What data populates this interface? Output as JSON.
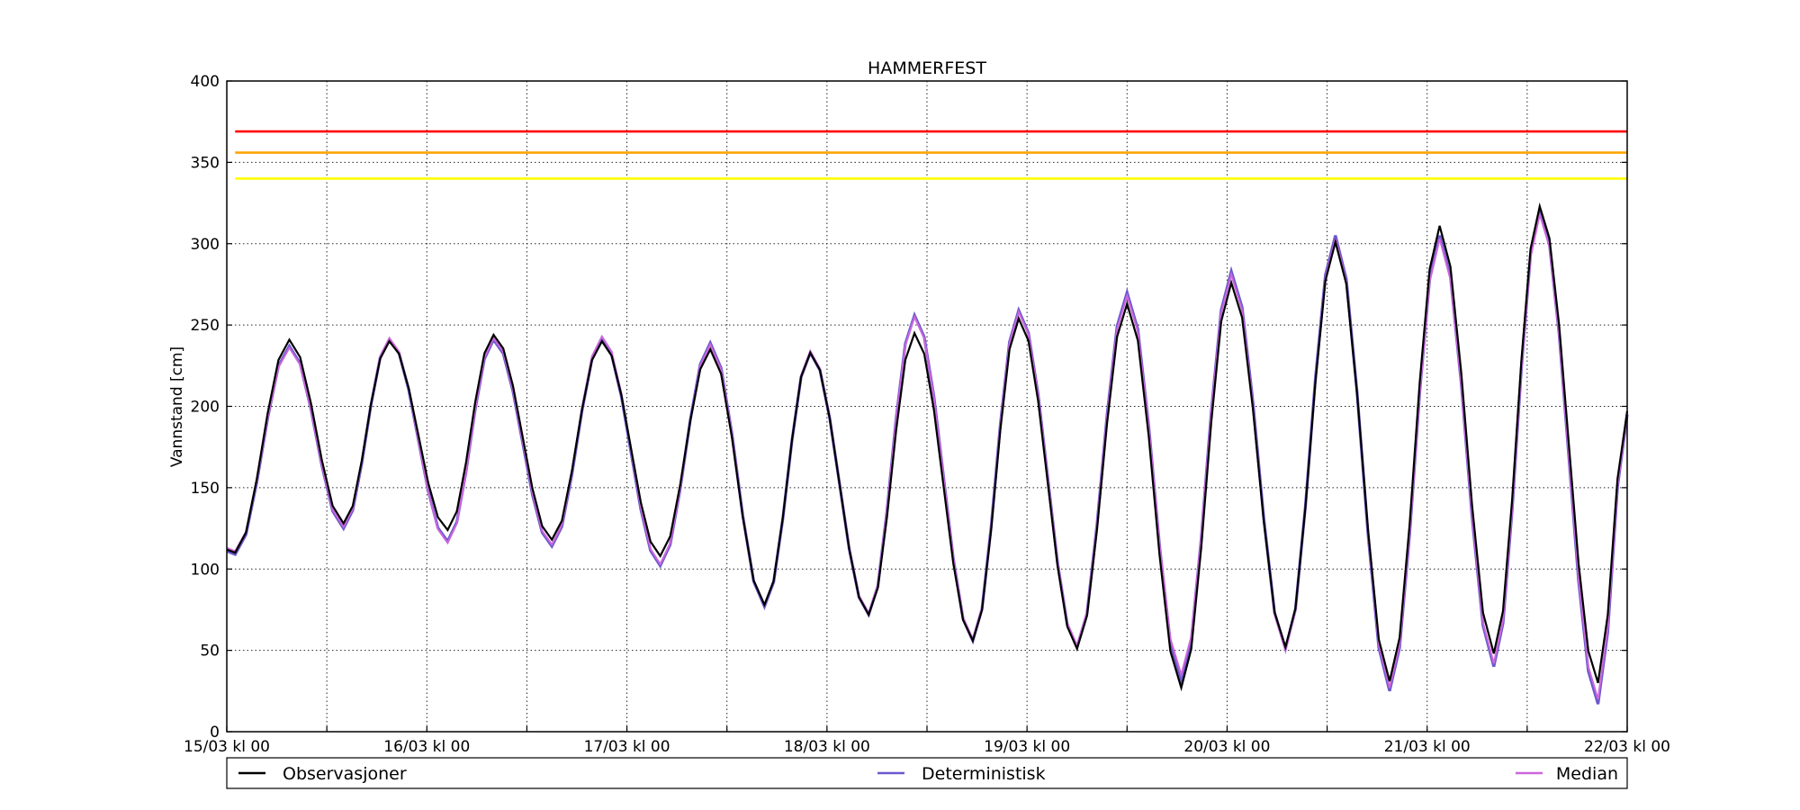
{
  "chart_data": {
    "type": "line",
    "title": "HAMMERFEST",
    "ylabel": "Vannstand [cm]",
    "xlabel": "",
    "ylim": [
      0,
      400
    ],
    "yticks": [
      0,
      50,
      100,
      150,
      200,
      250,
      300,
      350,
      400
    ],
    "xlim_hours": [
      0,
      168
    ],
    "xticks": [
      {
        "hour": 0,
        "label": "15/03 kl 00"
      },
      {
        "hour": 24,
        "label": "16/03 kl 00"
      },
      {
        "hour": 48,
        "label": "17/03 kl 00"
      },
      {
        "hour": 72,
        "label": "18/03 kl 00"
      },
      {
        "hour": 96,
        "label": "19/03 kl 00"
      },
      {
        "hour": 120,
        "label": "20/03 kl 00"
      },
      {
        "hour": 144,
        "label": "21/03 kl 00"
      },
      {
        "hour": 168,
        "label": "22/03 kl 00"
      }
    ],
    "minor_xticks_hours": [
      12,
      36,
      60,
      84,
      108,
      132,
      156
    ],
    "grid": true,
    "legend_position": "below",
    "thresholds": [
      {
        "value": 369,
        "color": "#ff0000"
      },
      {
        "value": 356,
        "color": "#ffa500"
      },
      {
        "value": 340,
        "color": "#ffff00"
      }
    ],
    "extrema": {
      "x_hours": [
        1,
        7.5,
        14,
        19.5,
        26.5,
        32,
        39,
        45,
        52,
        58,
        64.5,
        70,
        77,
        82.5,
        89.5,
        95,
        102,
        108,
        114.5,
        120.5,
        127,
        133,
        139.5,
        145.5,
        152,
        157.5,
        164.5,
        168
      ],
      "series": [
        {
          "name": "Observasjoner",
          "color": "#000000",
          "width": 2.2,
          "values": [
            110,
            241,
            128,
            240,
            124,
            244,
            118,
            240,
            108,
            235,
            78,
            233,
            72,
            245,
            56,
            254,
            51,
            263,
            27,
            276,
            52,
            301,
            31,
            311,
            48,
            323,
            30,
            197
          ]
        },
        {
          "name": "Deterministisk",
          "color": "#6a5acd",
          "width": 3.2,
          "values": [
            109,
            237,
            125,
            241,
            117,
            241,
            114,
            241,
            102,
            239,
            77,
            233,
            72,
            256,
            56,
            259,
            52,
            270,
            32,
            283,
            51,
            305,
            25,
            305,
            40,
            320,
            17,
            195
          ]
        },
        {
          "name": "Median",
          "color": "#cc66dd",
          "width": 2,
          "values": [
            111,
            236,
            126,
            242,
            116,
            242,
            115,
            243,
            103,
            238,
            78,
            234,
            73,
            255,
            57,
            258,
            53,
            268,
            35,
            281,
            50,
            303,
            27,
            303,
            42,
            318,
            20,
            195
          ]
        }
      ]
    }
  }
}
